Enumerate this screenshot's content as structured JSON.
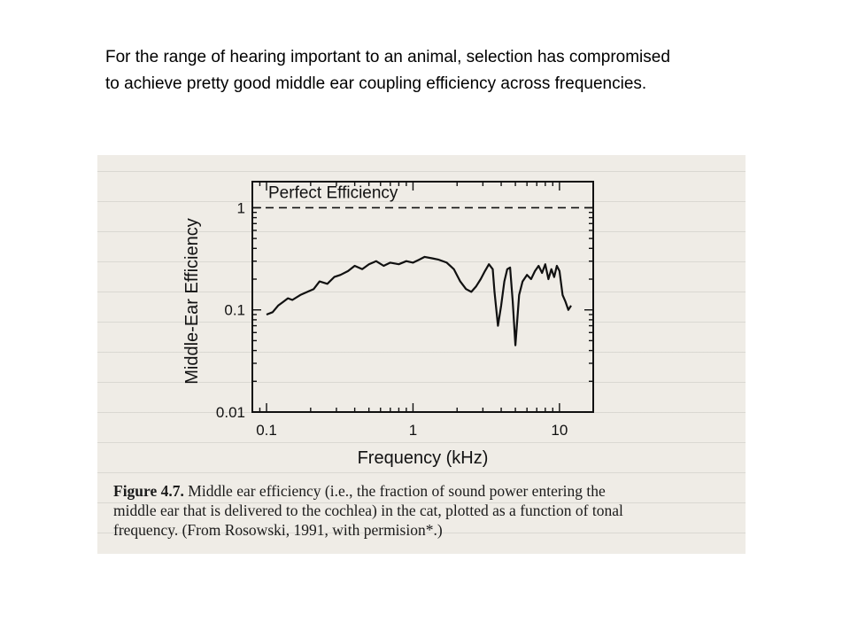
{
  "slide": {
    "text_lines": [
      "For the range of hearing important to an animal, selection has compromised",
      "to achieve pretty good middle ear coupling efficiency across frequencies."
    ]
  },
  "figure": {
    "caption_label": "Figure 4.7.",
    "caption_lines": [
      "Middle ear efficiency (i.e., the fraction of sound power entering the",
      "middle ear that is delivered to the cochlea) in the cat, plotted as a function of tonal",
      "frequency. (From Rosowski, 1991, with permision*.)"
    ]
  },
  "chart_data": {
    "type": "line",
    "xlabel": "Frequency (kHz)",
    "ylabel": "Middle-Ear Efficiency",
    "xscale": "log",
    "yscale": "log",
    "xlim": [
      0.08,
      17
    ],
    "ylim": [
      0.01,
      1.8
    ],
    "x_ticks": [
      0.1,
      1,
      10
    ],
    "x_tick_labels": [
      "0.1",
      "1",
      "10"
    ],
    "y_ticks": [
      0.01,
      0.1,
      1
    ],
    "y_tick_labels": [
      "0.01",
      "0.1",
      "1"
    ],
    "grid": false,
    "reference_line": {
      "label": "Perfect Efficiency",
      "y": 1,
      "style": "dashed"
    },
    "series": [
      {
        "x": [
          0.1,
          0.11,
          0.12,
          0.13,
          0.14,
          0.15,
          0.17,
          0.19,
          0.21,
          0.23,
          0.26,
          0.29,
          0.32,
          0.36,
          0.4,
          0.45,
          0.5,
          0.56,
          0.63,
          0.7,
          0.8,
          0.9,
          1.0,
          1.1,
          1.2,
          1.35,
          1.5,
          1.7,
          1.9,
          2.1,
          2.3,
          2.5,
          2.7,
          2.9,
          3.1,
          3.3,
          3.5,
          3.6,
          3.8,
          4.0,
          4.2,
          4.4,
          4.6,
          4.8,
          5.0,
          5.3,
          5.6,
          6.0,
          6.4,
          6.8,
          7.2,
          7.6,
          8.0,
          8.4,
          8.8,
          9.2,
          9.6,
          10.0,
          10.5,
          11.0,
          11.5,
          12.0
        ],
        "y": [
          0.09,
          0.095,
          0.11,
          0.12,
          0.13,
          0.125,
          0.14,
          0.15,
          0.16,
          0.19,
          0.18,
          0.21,
          0.22,
          0.24,
          0.27,
          0.25,
          0.28,
          0.3,
          0.27,
          0.29,
          0.28,
          0.3,
          0.29,
          0.31,
          0.33,
          0.32,
          0.31,
          0.29,
          0.25,
          0.19,
          0.16,
          0.15,
          0.17,
          0.2,
          0.24,
          0.28,
          0.25,
          0.15,
          0.07,
          0.11,
          0.19,
          0.25,
          0.26,
          0.12,
          0.045,
          0.14,
          0.19,
          0.22,
          0.2,
          0.24,
          0.27,
          0.23,
          0.28,
          0.2,
          0.25,
          0.21,
          0.27,
          0.24,
          0.14,
          0.12,
          0.1,
          0.11
        ]
      }
    ]
  },
  "colors": {
    "text": "#000000",
    "scan_paper": "#efece6",
    "ink": "#111111"
  }
}
